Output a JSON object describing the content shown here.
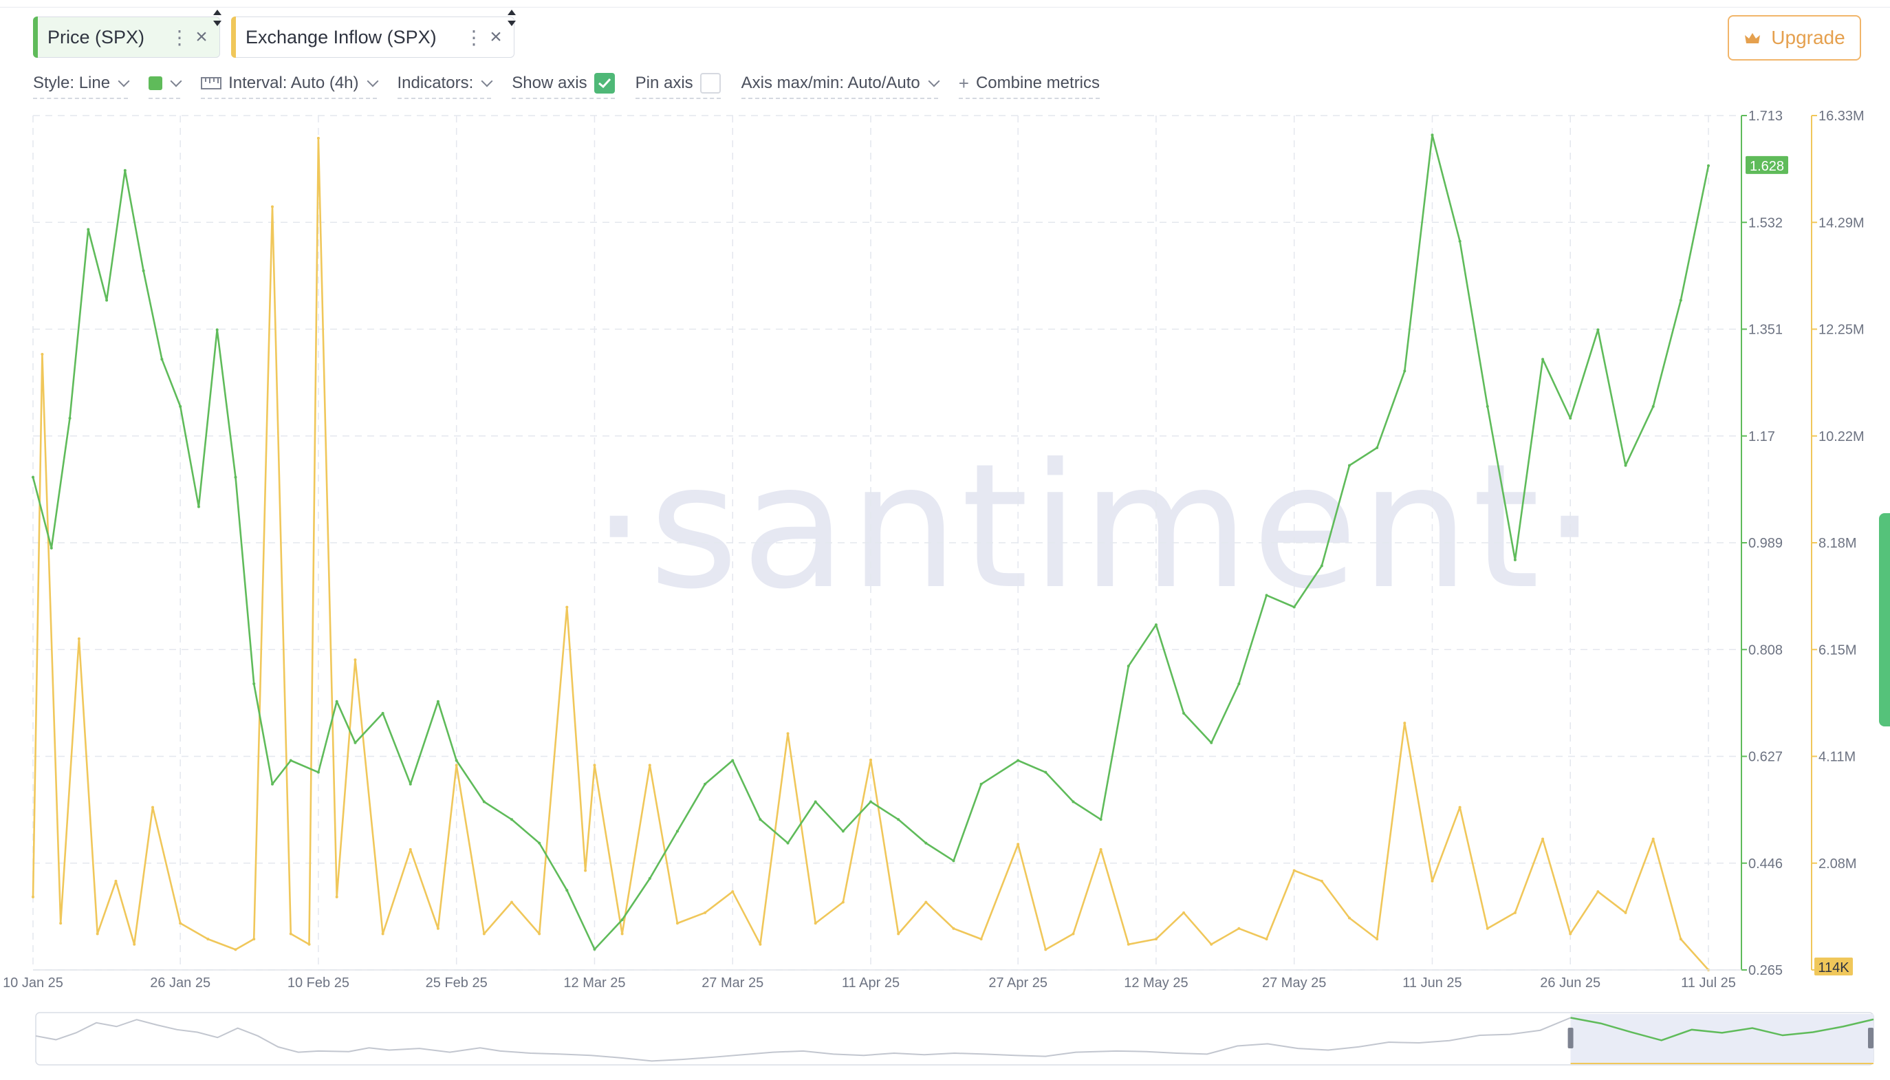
{
  "tabs": [
    {
      "label": "Price (SPX)",
      "color": "#5fbb5a"
    },
    {
      "label": "Exchange Inflow (SPX)",
      "color": "#f0c75a"
    }
  ],
  "upgrade": {
    "label": "Upgrade",
    "color": "#e5a04e"
  },
  "toolbar": {
    "style": "Style: Line",
    "interval": "Interval: Auto (4h)",
    "indicators": "Indicators:",
    "show_axis": "Show axis",
    "show_axis_checked": true,
    "pin_axis": "Pin axis",
    "pin_axis_checked": false,
    "axis_maxmin": "Axis max/min: Auto/Auto",
    "combine": "Combine metrics"
  },
  "watermark": "·santiment·",
  "chart_data": {
    "type": "line",
    "x_ticks": [
      "10 Jan 25",
      "26 Jan 25",
      "10 Feb 25",
      "25 Feb 25",
      "12 Mar 25",
      "27 Mar 25",
      "11 Apr 25",
      "27 Apr 25",
      "12 May 25",
      "27 May 25",
      "11 Jun 25",
      "26 Jun 25",
      "11 Jul 25"
    ],
    "price_axis": {
      "ticks": [
        "1.713",
        "1.532",
        "1.351",
        "1.17",
        "0.989",
        "0.808",
        "0.627",
        "0.446",
        "0.265"
      ],
      "min": 0.265,
      "max": 1.713,
      "color": "#5fbb5a"
    },
    "inflow_axis": {
      "ticks": [
        "16.33M",
        "14.29M",
        "12.25M",
        "10.22M",
        "8.18M",
        "6.15M",
        "4.11M",
        "2.08M",
        "114K"
      ],
      "min": 0.114,
      "max": 16.33,
      "unit": "M",
      "color": "#f0c75a"
    },
    "current_price_label": "1.628",
    "current_inflow_label": "114K",
    "series": [
      {
        "name": "Price (SPX)",
        "axis": "price",
        "color": "#5fbb5a",
        "x": [
          "10 Jan 25",
          "12 Jan 25",
          "14 Jan 25",
          "16 Jan 25",
          "18 Jan 25",
          "20 Jan 25",
          "22 Jan 25",
          "24 Jan 25",
          "26 Jan 25",
          "28 Jan 25",
          "30 Jan 25",
          "1 Feb 25",
          "3 Feb 25",
          "5 Feb 25",
          "7 Feb 25",
          "10 Feb 25",
          "12 Feb 25",
          "14 Feb 25",
          "17 Feb 25",
          "20 Feb 25",
          "23 Feb 25",
          "25 Feb 25",
          "28 Feb 25",
          "3 Mar 25",
          "6 Mar 25",
          "9 Mar 25",
          "12 Mar 25",
          "15 Mar 25",
          "18 Mar 25",
          "21 Mar 25",
          "24 Mar 25",
          "27 Mar 25",
          "30 Mar 25",
          "2 Apr 25",
          "5 Apr 25",
          "8 Apr 25",
          "11 Apr 25",
          "14 Apr 25",
          "17 Apr 25",
          "20 Apr 25",
          "23 Apr 25",
          "27 Apr 25",
          "30 Apr 25",
          "3 May 25",
          "6 May 25",
          "9 May 25",
          "12 May 25",
          "15 May 25",
          "18 May 25",
          "21 May 25",
          "24 May 25",
          "27 May 25",
          "30 May 25",
          "2 Jun 25",
          "5 Jun 25",
          "8 Jun 25",
          "11 Jun 25",
          "14 Jun 25",
          "17 Jun 25",
          "20 Jun 25",
          "23 Jun 25",
          "26 Jun 25",
          "29 Jun 25",
          "2 Jul 25",
          "5 Jul 25",
          "8 Jul 25",
          "11 Jul 25"
        ],
        "values": [
          1.1,
          0.98,
          1.2,
          1.52,
          1.4,
          1.62,
          1.45,
          1.3,
          1.22,
          1.05,
          1.35,
          1.1,
          0.75,
          0.58,
          0.62,
          0.6,
          0.72,
          0.65,
          0.7,
          0.58,
          0.72,
          0.62,
          0.55,
          0.52,
          0.48,
          0.4,
          0.3,
          0.35,
          0.42,
          0.5,
          0.58,
          0.62,
          0.52,
          0.48,
          0.55,
          0.5,
          0.55,
          0.52,
          0.48,
          0.45,
          0.58,
          0.62,
          0.6,
          0.55,
          0.52,
          0.78,
          0.85,
          0.7,
          0.65,
          0.75,
          0.9,
          0.88,
          0.95,
          1.12,
          1.15,
          1.28,
          1.68,
          1.5,
          1.22,
          0.96,
          1.3,
          1.2,
          1.35,
          1.12,
          1.22,
          1.4,
          1.628
        ]
      },
      {
        "name": "Exchange Inflow (SPX)",
        "axis": "inflow",
        "color": "#f0c75a",
        "x": [
          "10 Jan 25",
          "11 Jan 25",
          "13 Jan 25",
          "15 Jan 25",
          "17 Jan 25",
          "19 Jan 25",
          "21 Jan 25",
          "23 Jan 25",
          "26 Jan 25",
          "29 Jan 25",
          "1 Feb 25",
          "3 Feb 25",
          "5 Feb 25",
          "7 Feb 25",
          "9 Feb 25",
          "10 Feb 25",
          "12 Feb 25",
          "14 Feb 25",
          "17 Feb 25",
          "20 Feb 25",
          "23 Feb 25",
          "25 Feb 25",
          "28 Feb 25",
          "3 Mar 25",
          "6 Mar 25",
          "9 Mar 25",
          "11 Mar 25",
          "12 Mar 25",
          "15 Mar 25",
          "18 Mar 25",
          "21 Mar 25",
          "24 Mar 25",
          "27 Mar 25",
          "30 Mar 25",
          "2 Apr 25",
          "5 Apr 25",
          "8 Apr 25",
          "11 Apr 25",
          "14 Apr 25",
          "17 Apr 25",
          "20 Apr 25",
          "23 Apr 25",
          "27 Apr 25",
          "30 Apr 25",
          "3 May 25",
          "6 May 25",
          "9 May 25",
          "12 May 25",
          "15 May 25",
          "18 May 25",
          "21 May 25",
          "24 May 25",
          "27 May 25",
          "30 May 25",
          "2 Jun 25",
          "5 Jun 25",
          "8 Jun 25",
          "11 Jun 25",
          "14 Jun 25",
          "17 Jun 25",
          "20 Jun 25",
          "23 Jun 25",
          "26 Jun 25",
          "29 Jun 25",
          "2 Jul 25",
          "5 Jul 25",
          "8 Jul 25",
          "11 Jul 25"
        ],
        "values": [
          1.5,
          11.8,
          1.0,
          6.4,
          0.8,
          1.8,
          0.6,
          3.2,
          1.0,
          0.7,
          0.5,
          0.7,
          14.6,
          0.8,
          0.6,
          15.9,
          1.5,
          6.0,
          0.8,
          2.4,
          0.9,
          4.0,
          0.8,
          1.4,
          0.8,
          7.0,
          2.0,
          4.0,
          0.8,
          4.0,
          1.0,
          1.2,
          1.6,
          0.6,
          4.6,
          1.0,
          1.4,
          4.1,
          0.8,
          1.4,
          0.9,
          0.7,
          2.5,
          0.5,
          0.8,
          2.4,
          0.6,
          0.7,
          1.2,
          0.6,
          0.9,
          0.7,
          2.0,
          1.8,
          1.1,
          0.7,
          4.8,
          1.8,
          3.2,
          0.9,
          1.2,
          2.6,
          0.8,
          1.6,
          1.2,
          2.6,
          0.7,
          0.114
        ]
      }
    ],
    "navigator": {
      "selected_range": [
        "11 Jun 25",
        "11 Jul 25"
      ]
    },
    "grid": true
  }
}
